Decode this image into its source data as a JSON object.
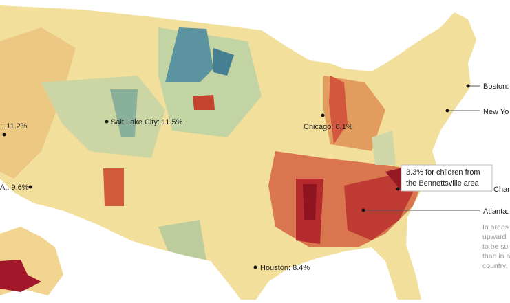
{
  "labels": [
    {
      "text": "Salt Lake City: 11.5%"
    },
    {
      "text": "Chicago: 6.1%"
    },
    {
      "text": "Houston: 8.4%"
    },
    {
      "text": ".: 11.2%"
    },
    {
      "text": "A.: 9.6%"
    },
    {
      "text": "Boston:"
    },
    {
      "text": "New Yo"
    },
    {
      "text": "Atlanta:"
    },
    {
      "text": "Charlott"
    }
  ],
  "tooltip": {
    "lines": [
      "3.3% for children from",
      "the Bennettsville area"
    ]
  },
  "side_text": {
    "lines": [
      "In areas",
      "upward",
      "to be su",
      "than in a",
      "country."
    ]
  }
}
